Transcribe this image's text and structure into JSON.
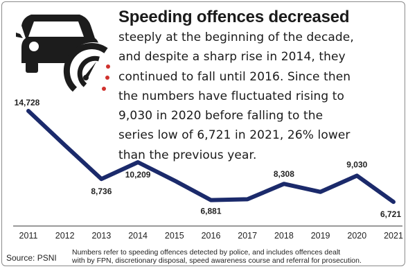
{
  "headline": "Speeding offences decreased",
  "body_lines": [
    "steeply at the beginning of the decade,",
    "and despite a sharp rise in 2014, they",
    "continued to fall until 2016. Since then",
    "the numbers have fluctuated rising to",
    "9,030 in 2020 before falling to the",
    "series low of 6,721 in 2021, 26% lower",
    "than the previous year."
  ],
  "icon": "car-speedometer-icon",
  "colors": {
    "line": "#1b2a6b",
    "icon": "#1c1c1c",
    "accent_dots": "#d0312d",
    "axis": "#333333"
  },
  "chart_data": {
    "type": "line",
    "x": [
      "2011",
      "2012",
      "2013",
      "2014",
      "2015",
      "2016",
      "2017",
      "2018",
      "2019",
      "2020",
      "2021"
    ],
    "series": [
      {
        "values": [
          14728,
          11700,
          8736,
          10209,
          8600,
          6881,
          6950,
          8308,
          7600,
          9030,
          6721
        ]
      }
    ],
    "data_labels": [
      {
        "x": "2011",
        "text": "14,728"
      },
      {
        "x": "2013",
        "text": "8,736"
      },
      {
        "x": "2014",
        "text": "10,209"
      },
      {
        "x": "2016",
        "text": "6,881"
      },
      {
        "x": "2018",
        "text": "8,308"
      },
      {
        "x": "2020",
        "text": "9,030"
      },
      {
        "x": "2021",
        "text": "6,721"
      }
    ],
    "ylim": [
      6000,
      15500
    ],
    "grid": false,
    "legend": "none"
  },
  "source": "Source: PSNI",
  "note_lines": [
    "Numbers refer to speeding offences detected by police, and includes offences dealt",
    "with by FPN, discretionary disposal, speed awareness course and referral for prosecution."
  ]
}
